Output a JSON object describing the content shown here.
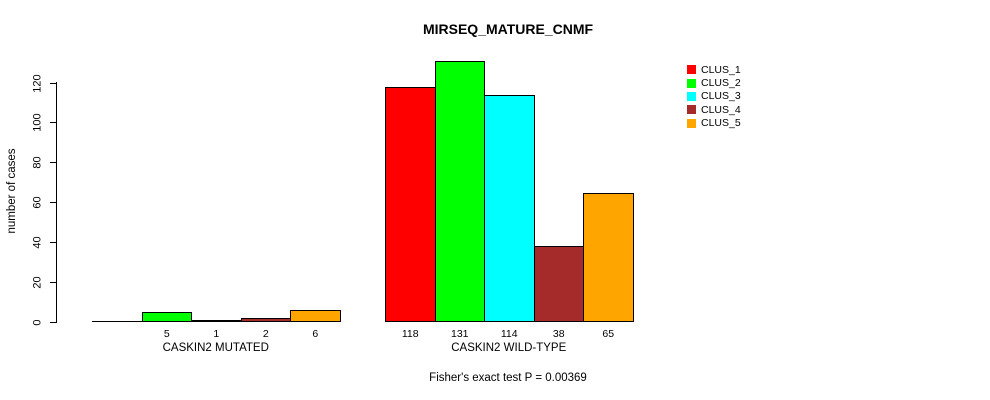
{
  "chart_data": {
    "type": "bar",
    "title": "MIRSEQ_MATURE_CNMF",
    "ylabel": "number of cases",
    "xlabel": "",
    "ylim": [
      0,
      120
    ],
    "yticks": [
      0,
      20,
      40,
      60,
      80,
      100,
      120
    ],
    "grid": false,
    "legend_position": "right",
    "groups": [
      "CASKIN2 MUTATED",
      "CASKIN2 WILD-TYPE"
    ],
    "series": [
      {
        "name": "CLUS_1",
        "color": "#ff0000",
        "values": [
          0,
          118
        ]
      },
      {
        "name": "CLUS_2",
        "color": "#00ff00",
        "values": [
          5,
          131
        ]
      },
      {
        "name": "CLUS_3",
        "color": "#00ffff",
        "values": [
          1,
          114
        ]
      },
      {
        "name": "CLUS_4",
        "color": "#a52a2a",
        "values": [
          2,
          38
        ]
      },
      {
        "name": "CLUS_5",
        "color": "#ffa500",
        "values": [
          6,
          65
        ]
      }
    ],
    "bar_value_labels_shown": [
      "5",
      "1",
      "2",
      "6",
      "118",
      "131",
      "114",
      "38",
      "65"
    ],
    "annotation": "Fisher's exact test P = 0.00369"
  }
}
